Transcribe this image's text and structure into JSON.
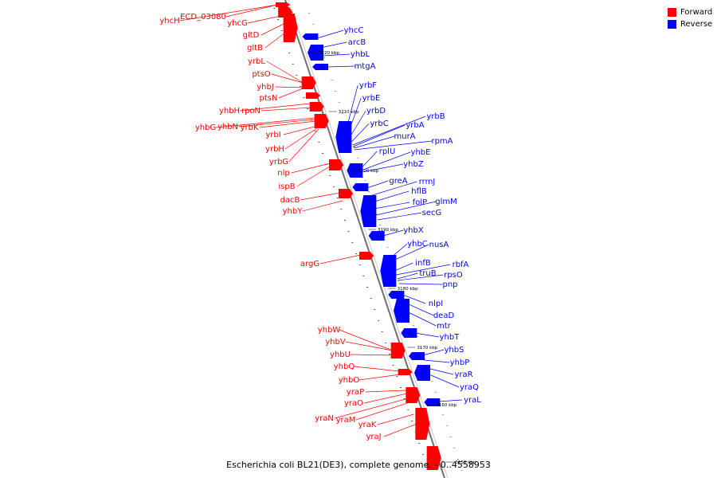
{
  "title": "Escherichia coli BL21(DE3), complete genome. - 0..4558953",
  "legend": [
    {
      "label": "Forward",
      "color": "#ff0000"
    },
    {
      "label": "Reverse",
      "color": "#0000ff"
    }
  ],
  "colors": {
    "forward": "#ff0000",
    "reverse": "#0000ff",
    "backbone": "#888888"
  },
  "ticks": [
    "3150 kbp",
    "3160 kbp",
    "3170 kbp",
    "3180 kbp",
    "3190 kbp",
    "3200 kbp",
    "3210 kbp",
    "3220 kbp"
  ],
  "forward_genes": [
    "yhcH",
    "ECD_03080",
    "yhcG",
    "gltD",
    "gltB",
    "yrbL",
    "ptsO",
    "yhbJ",
    "ptsN",
    "yhbH",
    "rpoN",
    "yhbG",
    "yhbN",
    "yrbK",
    "yrbI",
    "yrbH",
    "yrbG",
    "nlp",
    "ispB",
    "dacB",
    "yhbY",
    "argG",
    "yhbW",
    "yhbV",
    "yhbU",
    "yhbQ",
    "yhbO",
    "yraP",
    "yraO",
    "yraN",
    "yraM",
    "yraK",
    "yraJ"
  ],
  "reverse_genes": [
    "yhcC",
    "arcB",
    "yhbL",
    "mtgA",
    "yrbF",
    "yrbE",
    "yrbD",
    "yrbC",
    "yrbB",
    "yrbA",
    "murA",
    "rpmA",
    "rplU",
    "yhbE",
    "yhbZ",
    "greA",
    "rrmJ",
    "hflB",
    "folP",
    "glmM",
    "secG",
    "yhbX",
    "yhbC",
    "nusA",
    "infB",
    "rbfA",
    "truB",
    "rpsO",
    "pnp",
    "nlpI",
    "deaD",
    "mtr",
    "yhbT",
    "yhbS",
    "yhbP",
    "yraR",
    "yraQ",
    "yraL"
  ]
}
